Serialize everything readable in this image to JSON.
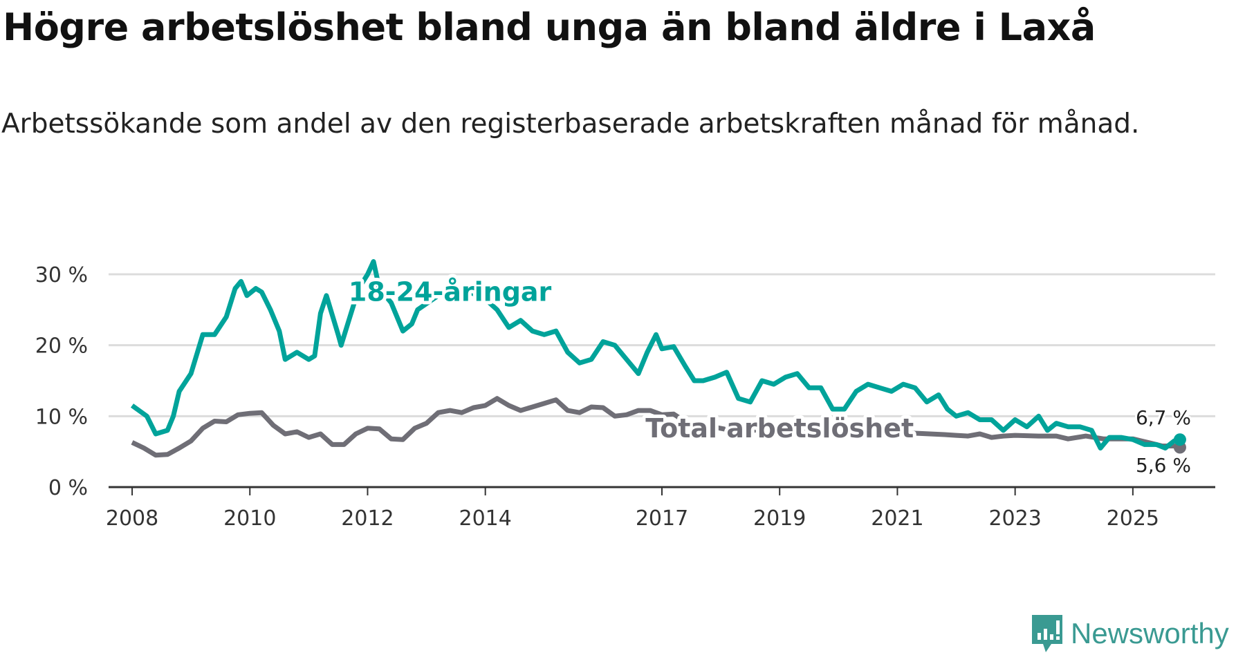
{
  "title": "Högre arbetslöshet bland unga än bland äldre i Laxå",
  "subtitle": "Arbetssökande som andel av den registerbaserade arbetskraften månad för månad.",
  "logo": {
    "text": "Newsworthy",
    "icon": "newsworthy-chart-bubble-icon"
  },
  "chart_data": {
    "type": "line",
    "title": "Högre arbetslöshet bland unga än bland äldre i Laxå",
    "xlabel": "",
    "ylabel": "",
    "xlim": [
      2007.6,
      2026.4
    ],
    "ylim": [
      0,
      30
    ],
    "grid": true,
    "yticks": [
      {
        "v": 0,
        "label": "0 %"
      },
      {
        "v": 10,
        "label": "10 %"
      },
      {
        "v": 20,
        "label": "20 %"
      },
      {
        "v": 30,
        "label": "30 %"
      }
    ],
    "xticks": [
      {
        "v": 2008,
        "label": "2008"
      },
      {
        "v": 2010,
        "label": "2010"
      },
      {
        "v": 2012,
        "label": "2012"
      },
      {
        "v": 2014,
        "label": "2014"
      },
      {
        "v": 2017,
        "label": "2017"
      },
      {
        "v": 2019,
        "label": "2019"
      },
      {
        "v": 2021,
        "label": "2021"
      },
      {
        "v": 2023,
        "label": "2023"
      },
      {
        "v": 2025,
        "label": "2025"
      }
    ],
    "series": [
      {
        "name": "Total arbetslöshet",
        "color": "#6f6e76",
        "end_label": "5,6 %",
        "points": [
          [
            2008.0,
            6.3
          ],
          [
            2008.2,
            5.5
          ],
          [
            2008.4,
            4.5
          ],
          [
            2008.6,
            4.6
          ],
          [
            2008.8,
            5.5
          ],
          [
            2009.0,
            6.5
          ],
          [
            2009.2,
            8.3
          ],
          [
            2009.4,
            9.3
          ],
          [
            2009.6,
            9.2
          ],
          [
            2009.8,
            10.2
          ],
          [
            2010.0,
            10.4
          ],
          [
            2010.2,
            10.5
          ],
          [
            2010.4,
            8.7
          ],
          [
            2010.6,
            7.5
          ],
          [
            2010.8,
            7.8
          ],
          [
            2011.0,
            7.0
          ],
          [
            2011.2,
            7.5
          ],
          [
            2011.4,
            6.0
          ],
          [
            2011.6,
            6.0
          ],
          [
            2011.8,
            7.5
          ],
          [
            2012.0,
            8.3
          ],
          [
            2012.2,
            8.2
          ],
          [
            2012.4,
            6.8
          ],
          [
            2012.6,
            6.7
          ],
          [
            2012.8,
            8.3
          ],
          [
            2013.0,
            9.0
          ],
          [
            2013.2,
            10.5
          ],
          [
            2013.4,
            10.8
          ],
          [
            2013.6,
            10.5
          ],
          [
            2013.8,
            11.2
          ],
          [
            2014.0,
            11.5
          ],
          [
            2014.2,
            12.5
          ],
          [
            2014.4,
            11.5
          ],
          [
            2014.6,
            10.8
          ],
          [
            2014.8,
            11.3
          ],
          [
            2015.0,
            11.8
          ],
          [
            2015.2,
            12.3
          ],
          [
            2015.4,
            10.8
          ],
          [
            2015.6,
            10.5
          ],
          [
            2015.8,
            11.3
          ],
          [
            2016.0,
            11.2
          ],
          [
            2016.2,
            10.0
          ],
          [
            2016.4,
            10.2
          ],
          [
            2016.6,
            10.8
          ],
          [
            2016.8,
            10.8
          ],
          [
            2017.0,
            10.2
          ],
          [
            2017.2,
            10.3
          ],
          [
            2017.4,
            9.2
          ],
          [
            2017.8,
            8.6
          ],
          [
            2018.3,
            7.8
          ],
          [
            2018.8,
            8.2
          ],
          [
            2019.3,
            8.0
          ],
          [
            2019.8,
            7.8
          ],
          [
            2020.3,
            8.2
          ],
          [
            2020.8,
            7.9
          ],
          [
            2021.3,
            7.6
          ],
          [
            2021.8,
            7.4
          ],
          [
            2022.0,
            7.3
          ],
          [
            2022.2,
            7.2
          ],
          [
            2022.4,
            7.5
          ],
          [
            2022.6,
            7.0
          ],
          [
            2022.8,
            7.2
          ],
          [
            2023.0,
            7.3
          ],
          [
            2023.4,
            7.2
          ],
          [
            2023.7,
            7.2
          ],
          [
            2023.9,
            6.8
          ],
          [
            2024.2,
            7.2
          ],
          [
            2024.5,
            6.8
          ],
          [
            2024.8,
            6.8
          ],
          [
            2025.0,
            6.8
          ],
          [
            2025.3,
            6.2
          ],
          [
            2025.5,
            5.8
          ],
          [
            2025.7,
            5.8
          ],
          [
            2025.8,
            5.6
          ]
        ]
      },
      {
        "name": "18-24-åringar",
        "color": "#00a39a",
        "end_label": "6,7 %",
        "points": [
          [
            2008.0,
            11.5
          ],
          [
            2008.25,
            10.0
          ],
          [
            2008.4,
            7.5
          ],
          [
            2008.6,
            8.0
          ],
          [
            2008.7,
            10.0
          ],
          [
            2008.8,
            13.5
          ],
          [
            2009.0,
            16.0
          ],
          [
            2009.2,
            21.5
          ],
          [
            2009.4,
            21.5
          ],
          [
            2009.6,
            24.0
          ],
          [
            2009.75,
            28.0
          ],
          [
            2009.85,
            29.0
          ],
          [
            2009.95,
            27.0
          ],
          [
            2010.1,
            28.0
          ],
          [
            2010.2,
            27.5
          ],
          [
            2010.35,
            25.0
          ],
          [
            2010.5,
            22.0
          ],
          [
            2010.6,
            18.0
          ],
          [
            2010.8,
            19.0
          ],
          [
            2011.0,
            18.0
          ],
          [
            2011.1,
            18.5
          ],
          [
            2011.2,
            24.5
          ],
          [
            2011.3,
            27.0
          ],
          [
            2011.5,
            21.5
          ],
          [
            2011.55,
            20.0
          ],
          [
            2011.7,
            24.0
          ],
          [
            2011.85,
            28.0
          ],
          [
            2012.0,
            30.0
          ],
          [
            2012.1,
            31.8
          ],
          [
            2012.2,
            28.0
          ],
          [
            2012.4,
            26.0
          ],
          [
            2012.6,
            22.0
          ],
          [
            2012.75,
            23.0
          ],
          [
            2012.85,
            25.0
          ],
          [
            2013.2,
            27.0
          ],
          [
            2013.6,
            28.0
          ],
          [
            2014.0,
            26.5
          ],
          [
            2014.2,
            25.0
          ],
          [
            2014.4,
            22.5
          ],
          [
            2014.6,
            23.5
          ],
          [
            2014.8,
            22.0
          ],
          [
            2015.0,
            21.5
          ],
          [
            2015.2,
            22.0
          ],
          [
            2015.4,
            19.0
          ],
          [
            2015.6,
            17.5
          ],
          [
            2015.8,
            18.0
          ],
          [
            2016.0,
            20.5
          ],
          [
            2016.2,
            20.0
          ],
          [
            2016.4,
            18.0
          ],
          [
            2016.6,
            16.0
          ],
          [
            2016.75,
            19.0
          ],
          [
            2016.9,
            21.5
          ],
          [
            2017.0,
            19.5
          ],
          [
            2017.2,
            19.8
          ],
          [
            2017.4,
            17.0
          ],
          [
            2017.55,
            15.0
          ],
          [
            2017.7,
            15.0
          ],
          [
            2017.9,
            15.5
          ],
          [
            2018.1,
            16.2
          ],
          [
            2018.3,
            12.5
          ],
          [
            2018.5,
            12.0
          ],
          [
            2018.7,
            15.0
          ],
          [
            2018.9,
            14.5
          ],
          [
            2019.1,
            15.5
          ],
          [
            2019.3,
            16.0
          ],
          [
            2019.5,
            14.0
          ],
          [
            2019.7,
            14.0
          ],
          [
            2019.9,
            11.0
          ],
          [
            2020.1,
            11.0
          ],
          [
            2020.3,
            13.5
          ],
          [
            2020.5,
            14.5
          ],
          [
            2020.7,
            14.0
          ],
          [
            2020.9,
            13.5
          ],
          [
            2021.1,
            14.5
          ],
          [
            2021.3,
            14.0
          ],
          [
            2021.5,
            12.0
          ],
          [
            2021.7,
            13.0
          ],
          [
            2021.85,
            11.0
          ],
          [
            2022.0,
            10.0
          ],
          [
            2022.2,
            10.5
          ],
          [
            2022.4,
            9.5
          ],
          [
            2022.6,
            9.5
          ],
          [
            2022.8,
            8.0
          ],
          [
            2023.0,
            9.5
          ],
          [
            2023.2,
            8.5
          ],
          [
            2023.4,
            10.0
          ],
          [
            2023.55,
            8.0
          ],
          [
            2023.7,
            9.0
          ],
          [
            2023.9,
            8.5
          ],
          [
            2024.1,
            8.5
          ],
          [
            2024.3,
            8.0
          ],
          [
            2024.45,
            5.5
          ],
          [
            2024.6,
            7.0
          ],
          [
            2024.8,
            7.0
          ],
          [
            2025.0,
            6.7
          ],
          [
            2025.2,
            6.0
          ],
          [
            2025.4,
            6.0
          ],
          [
            2025.55,
            5.5
          ],
          [
            2025.7,
            6.5
          ],
          [
            2025.8,
            6.7
          ]
        ]
      }
    ],
    "annotations": [
      {
        "text": "18-24-åringar",
        "series": "18-24-åringar",
        "x": 2013.4,
        "y": 27.5
      },
      {
        "text": "Total arbetslöshet",
        "series": "Total arbetslöshet",
        "x": 2019.0,
        "y": 8.3
      }
    ]
  }
}
